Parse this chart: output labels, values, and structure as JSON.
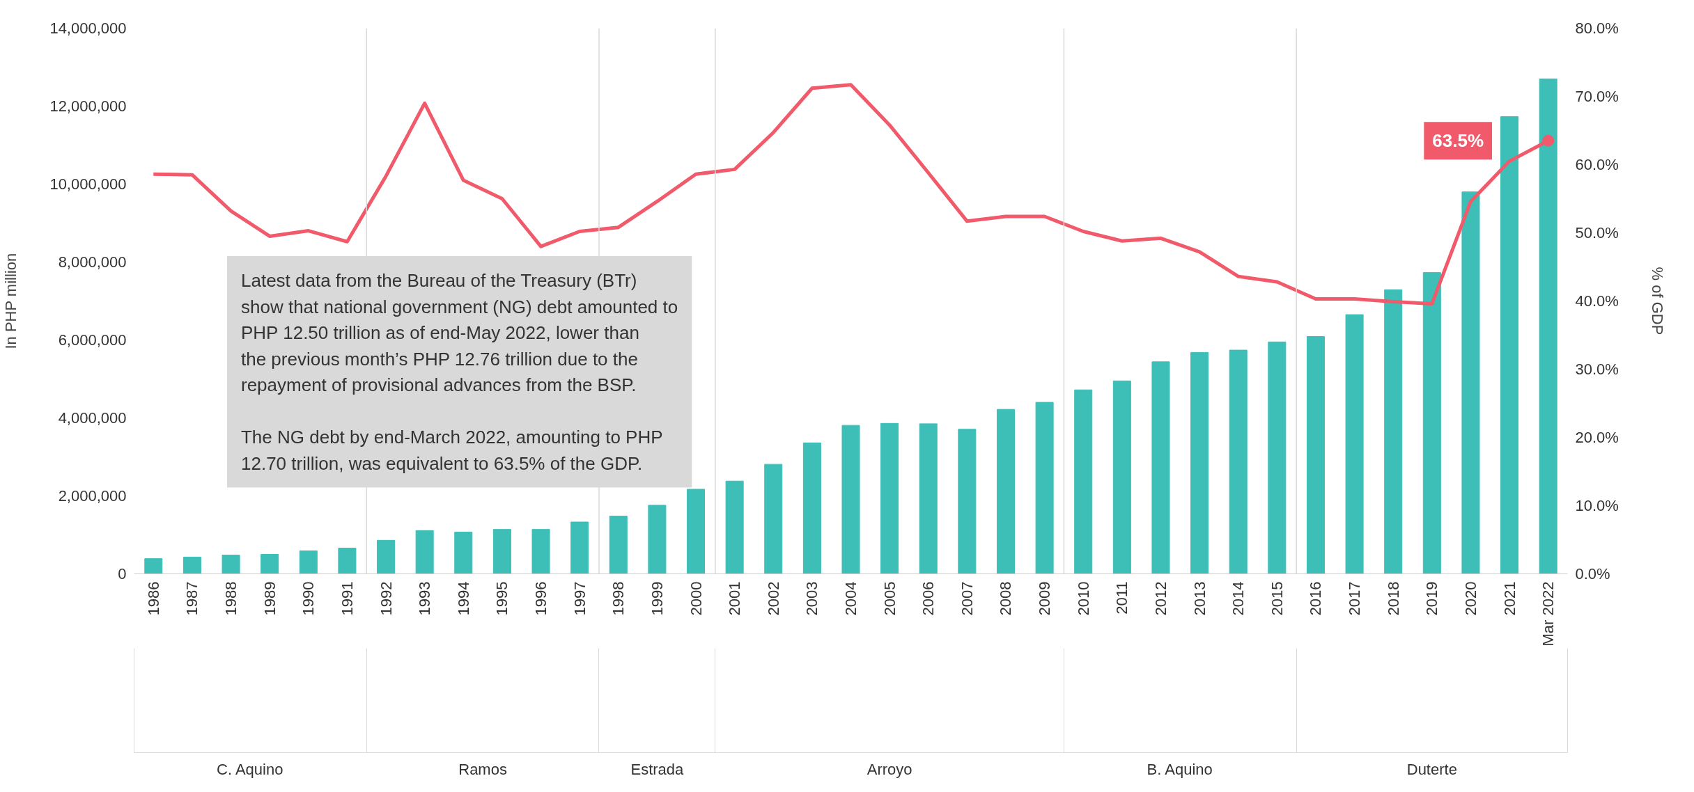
{
  "chart_data": {
    "type": "bar",
    "ylabel": "In PHP million",
    "y2label": "% of GDP",
    "categories": [
      "1986",
      "1987",
      "1988",
      "1989",
      "1990",
      "1991",
      "1992",
      "1993",
      "1994",
      "1995",
      "1996",
      "1997",
      "1998",
      "1999",
      "2000",
      "2001",
      "2002",
      "2003",
      "2004",
      "2005",
      "2006",
      "2007",
      "2008",
      "2009",
      "2010",
      "2011",
      "2012",
      "2013",
      "2014",
      "2015",
      "2016",
      "2017",
      "2018",
      "2019",
      "2020",
      "2021",
      "Mar 2022"
    ],
    "series": [
      {
        "color": "#3dbfb8",
        "values": [
          390000,
          430000,
          480000,
          500000,
          590000,
          660000,
          860000,
          1110000,
          1070000,
          1140000,
          1140000,
          1330000,
          1480000,
          1760000,
          2170000,
          2380000,
          2810000,
          3360000,
          3810000,
          3860000,
          3850000,
          3710000,
          4220000,
          4400000,
          4720000,
          4950000,
          5440000,
          5680000,
          5740000,
          5950000,
          6090000,
          6650000,
          7290000,
          7730000,
          9800000,
          11730000,
          12700000
        ]
      },
      {
        "type": "line",
        "axis": "y2",
        "color": "#f05a6a",
        "values": [
          58.6,
          58.5,
          53.2,
          49.5,
          50.3,
          48.7,
          58.3,
          69.0,
          57.7,
          55.0,
          48.0,
          50.2,
          50.8,
          54.6,
          58.6,
          59.3,
          64.7,
          71.2,
          71.7,
          65.8,
          58.8,
          51.7,
          52.4,
          52.4,
          50.2,
          48.8,
          49.2,
          47.2,
          43.6,
          42.8,
          40.3,
          40.3,
          39.9,
          39.6,
          54.6,
          60.5,
          63.5
        ]
      }
    ],
    "ylim": [
      0,
      14000000
    ],
    "yticks": [
      {
        "value": 0,
        "label": "0"
      },
      {
        "value": 2000000,
        "label": "2,000,000"
      },
      {
        "value": 4000000,
        "label": "4,000,000"
      },
      {
        "value": 6000000,
        "label": "6,000,000"
      },
      {
        "value": 8000000,
        "label": "8,000,000"
      },
      {
        "value": 10000000,
        "label": "10,000,000"
      },
      {
        "value": 12000000,
        "label": "12,000,000"
      },
      {
        "value": 14000000,
        "label": "14,000,000"
      }
    ],
    "y2lim": [
      0,
      80
    ],
    "y2ticks": [
      {
        "value": 0,
        "label": "0.0%"
      },
      {
        "value": 10,
        "label": "10.0%"
      },
      {
        "value": 20,
        "label": "20.0%"
      },
      {
        "value": 30,
        "label": "30.0%"
      },
      {
        "value": 40,
        "label": "40.0%"
      },
      {
        "value": 50,
        "label": "50.0%"
      },
      {
        "value": 60,
        "label": "60.0%"
      },
      {
        "value": 70,
        "label": "70.0%"
      },
      {
        "value": 80,
        "label": "80.0%"
      }
    ],
    "annotations": [
      "C. Aquino",
      "Ramos",
      "Estrada",
      "Arroyo",
      "B. Aquino",
      "Duterte",
      "Latest data from the Bureau of the Treasury (BTr) show that national government (NG) debt amounted to PHP 12.50 trillion as of end-May 2022, lower than the previous month’s PHP 12.76 trillion due to the repayment of provisional advances from the BSP.",
      "The NG debt by end-March 2022, amounting to PHP 12.70 trillion, was equivalent to 63.5% of the GDP.",
      "63.5%"
    ],
    "grid": false
  }
}
